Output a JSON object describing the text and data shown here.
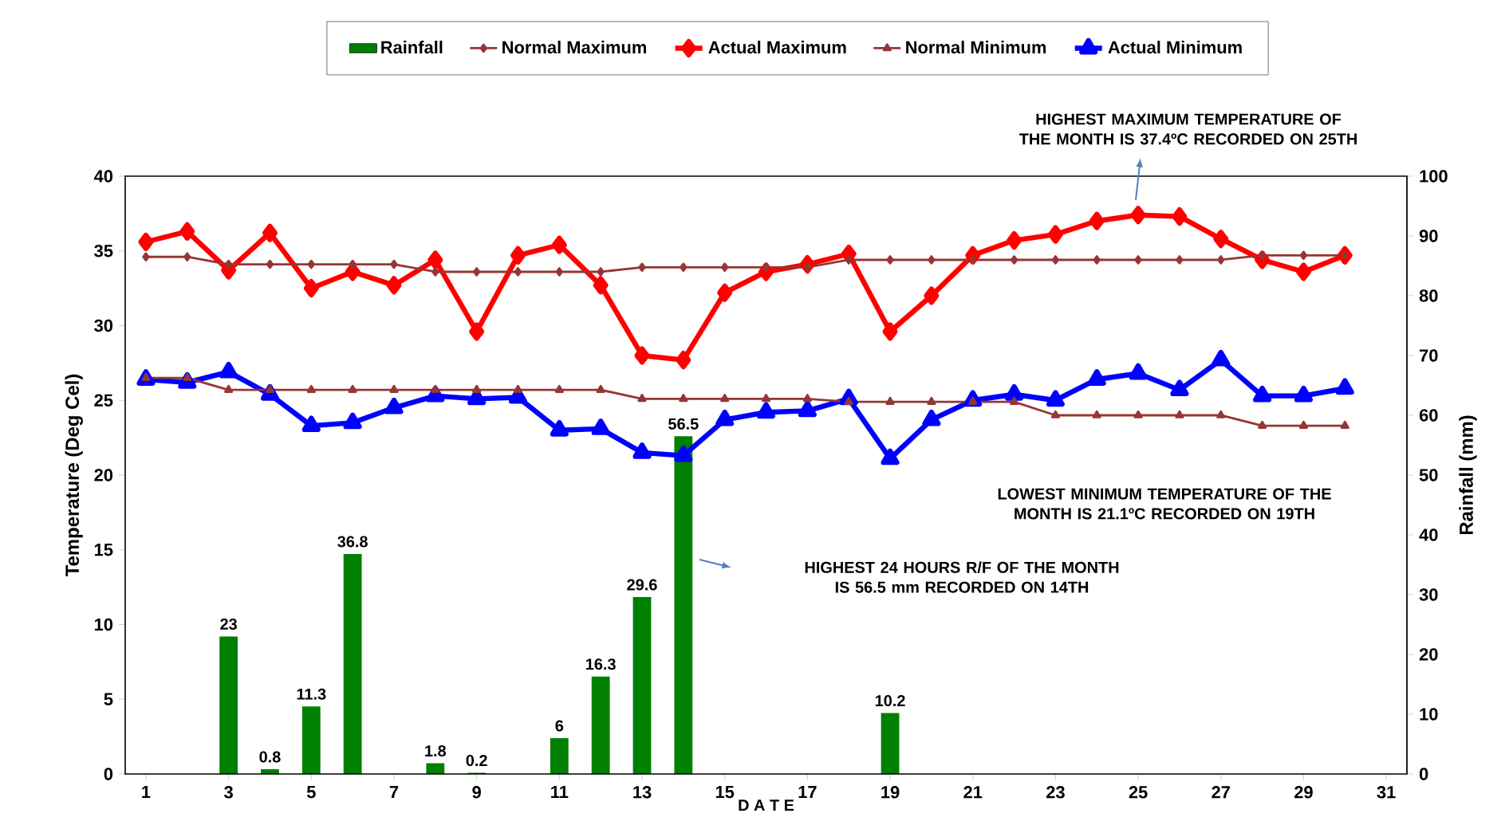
{
  "chart_data": {
    "type": "line",
    "x": [
      1,
      2,
      3,
      4,
      5,
      6,
      7,
      8,
      9,
      10,
      11,
      12,
      13,
      14,
      15,
      16,
      17,
      18,
      19,
      20,
      21,
      22,
      23,
      24,
      25,
      26,
      27,
      28,
      29,
      30
    ],
    "xlim": [
      0.5,
      31.5
    ],
    "xticks": [
      1,
      3,
      5,
      7,
      9,
      11,
      13,
      15,
      17,
      19,
      21,
      23,
      25,
      27,
      29,
      31
    ],
    "ylim": [
      0,
      40
    ],
    "yticks": [
      0,
      5,
      10,
      15,
      20,
      25,
      30,
      35,
      40
    ],
    "y2lim": [
      0,
      100
    ],
    "y2ticks": [
      0,
      10,
      20,
      30,
      40,
      50,
      60,
      70,
      80,
      90,
      100
    ],
    "xlabel": "D A T E",
    "ylabel": "Temperature (Deg Cel)",
    "y2label": "Rainfall (mm)",
    "legend": "top",
    "grid": false,
    "series": [
      {
        "name": "Rainfall",
        "type": "bar",
        "axis": "y2",
        "color": "#008000",
        "values": [
          null,
          null,
          23,
          0.8,
          11.3,
          36.8,
          null,
          1.8,
          0.2,
          null,
          6,
          16.3,
          29.6,
          56.5,
          null,
          null,
          null,
          null,
          10.2,
          null,
          null,
          null,
          null,
          null,
          null,
          null,
          null,
          null,
          null,
          null
        ],
        "value_labels": [
          null,
          null,
          "23",
          "0.8",
          "11.3",
          "36.8",
          null,
          "1.8",
          "0.2",
          null,
          "6",
          "16.3",
          "29.6",
          "56.5",
          null,
          null,
          null,
          null,
          "10.2",
          null,
          null,
          null,
          null,
          null,
          null,
          null,
          null,
          null,
          null,
          null
        ]
      },
      {
        "name": "Normal Maximum",
        "color": "#953735",
        "marker": "diamond",
        "values": [
          34.6,
          34.6,
          34.1,
          34.1,
          34.1,
          34.1,
          34.1,
          33.6,
          33.6,
          33.6,
          33.6,
          33.6,
          33.9,
          33.9,
          33.9,
          33.9,
          33.9,
          34.4,
          34.4,
          34.4,
          34.4,
          34.4,
          34.4,
          34.4,
          34.4,
          34.4,
          34.4,
          34.7,
          34.7,
          34.7
        ]
      },
      {
        "name": "Actual Maximum",
        "color": "#ff0000",
        "marker": "diamond",
        "values": [
          35.6,
          36.3,
          33.7,
          36.2,
          32.5,
          33.6,
          32.7,
          34.4,
          29.6,
          34.7,
          35.4,
          32.7,
          28.0,
          27.7,
          32.2,
          33.6,
          34.1,
          34.8,
          29.6,
          32.0,
          34.7,
          35.7,
          36.1,
          37.0,
          37.4,
          37.3,
          35.8,
          34.4,
          33.6,
          34.7
        ]
      },
      {
        "name": "Normal Minimum",
        "color": "#953735",
        "marker": "triangle",
        "values": [
          26.5,
          26.5,
          25.7,
          25.7,
          25.7,
          25.7,
          25.7,
          25.7,
          25.7,
          25.7,
          25.7,
          25.7,
          25.1,
          25.1,
          25.1,
          25.1,
          25.1,
          24.9,
          24.9,
          24.9,
          24.9,
          24.9,
          24.0,
          24.0,
          24.0,
          24.0,
          24.0,
          23.3,
          23.3,
          23.3
        ]
      },
      {
        "name": "Actual Minimum",
        "color": "#0000ff",
        "marker": "triangle",
        "values": [
          26.4,
          26.2,
          26.9,
          25.4,
          23.3,
          23.5,
          24.5,
          25.3,
          25.1,
          25.2,
          23.0,
          23.1,
          21.5,
          21.3,
          23.7,
          24.2,
          24.3,
          25.1,
          21.1,
          23.7,
          25.0,
          25.4,
          25.0,
          26.4,
          26.8,
          25.7,
          27.7,
          25.3,
          25.3,
          25.8
        ]
      }
    ],
    "annotations": [
      "HIGHEST MAXIMUM TEMPERATURE OF THE MONTH IS 37.4ºC RECORDED ON 25TH",
      "LOWEST MINIMUM  TEMPERATURE OF THE MONTH IS 21.1ºC RECORDED ON 19TH",
      "HIGHEST 24 HOURS R/F OF THE MONTH IS  56.5 mm RECORDED ON 14TH"
    ]
  }
}
